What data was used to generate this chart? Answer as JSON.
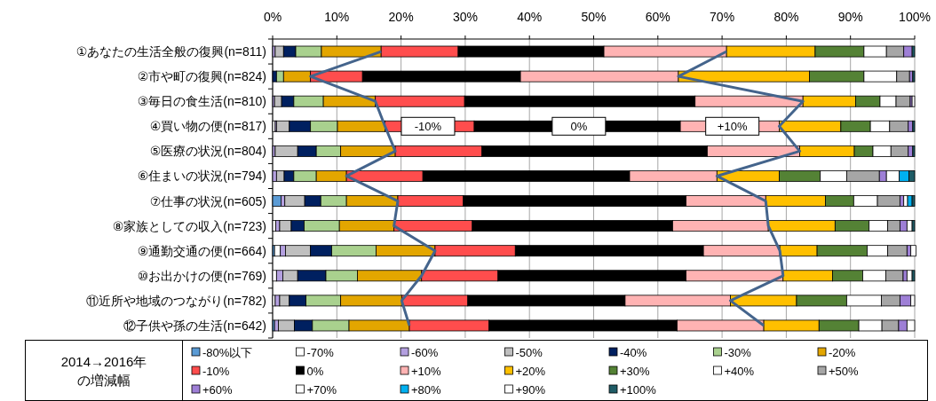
{
  "chart_data": {
    "type": "bar",
    "orientation": "horizontal",
    "stacked": true,
    "categories": [
      "①あなたの生活全般の復興(n=811)",
      "②市や町の復興(n=824)",
      "③毎日の食生活(n=810)",
      "④買い物の便(n=817)",
      "⑤医療の状況(n=804)",
      "⑥住まいの状況(n=794)",
      "⑦仕事の状況(n=605)",
      "⑧家族としての収入(n=723)",
      "⑨通勤交通の便(n=664)",
      "⑩お出かけの便(n=769)",
      "⑪近所や地域のつながり(n=782)",
      "⑫子供や孫の生活(n=642)"
    ],
    "xlim": [
      0,
      100
    ],
    "xticks": [
      {
        "value": 0,
        "label": "0%"
      },
      {
        "value": 10,
        "label": "10%"
      },
      {
        "value": 20,
        "label": "20%"
      },
      {
        "value": 30,
        "label": "30%"
      },
      {
        "value": 40,
        "label": "40%"
      },
      {
        "value": 50,
        "label": "50%"
      },
      {
        "value": 60,
        "label": "60%"
      },
      {
        "value": 70,
        "label": "70%"
      },
      {
        "value": 80,
        "label": "80%"
      },
      {
        "value": 90,
        "label": "90%"
      },
      {
        "value": 100,
        "label": "100%"
      }
    ],
    "grid": "x",
    "legend": "bottom",
    "legend_title": "2014→2016年の増減幅",
    "series": [
      {
        "name": "-80%以下",
        "color": "#5b9bd5",
        "values": [
          0,
          0,
          0,
          0,
          0,
          0,
          1.3,
          0,
          0.3,
          0,
          0,
          0.3
        ]
      },
      {
        "name": "-70%",
        "color": "#ffffff",
        "values": [
          0,
          0,
          0,
          0.4,
          0,
          0,
          0,
          0.5,
          0.9,
          0.6,
          0.4,
          0
        ]
      },
      {
        "name": "-60%",
        "color": "#b4a0e0",
        "values": [
          0.4,
          0,
          0.3,
          0.2,
          0.4,
          0.6,
          0.6,
          0.6,
          0.8,
          1.0,
          0.7,
          0.6
        ]
      },
      {
        "name": "-50%",
        "color": "#bfbfbf",
        "values": [
          1.3,
          0,
          1.1,
          2.0,
          3.5,
          1.2,
          3.1,
          1.8,
          3.9,
          2.3,
          1.5,
          2.5
        ]
      },
      {
        "name": "-40%",
        "color": "#002060",
        "values": [
          1.9,
          0.6,
          1.9,
          3.3,
          2.9,
          1.5,
          2.5,
          2.0,
          3.3,
          4.4,
          2.6,
          2.8
        ]
      },
      {
        "name": "-30%",
        "color": "#a9d18e",
        "values": [
          4.0,
          1.1,
          4.6,
          4.2,
          3.8,
          3.5,
          4.0,
          5.5,
          6.9,
          4.9,
          5.4,
          5.7
        ]
      },
      {
        "name": "-20%",
        "color": "#e3a600",
        "values": [
          9.3,
          4.2,
          8.1,
          7.4,
          8.5,
          4.7,
          8.0,
          8.5,
          9.2,
          10.0,
          9.5,
          9.4
        ]
      },
      {
        "name": "-10%",
        "color": "#ff4d4d",
        "values": [
          12.0,
          8.1,
          13.9,
          13.9,
          13.5,
          11.9,
          10.2,
          12.2,
          12.5,
          11.9,
          10.3,
          12.4
        ]
      },
      {
        "name": "0%",
        "color": "#000000",
        "values": [
          22.7,
          24.6,
          35.9,
          32.1,
          35.1,
          32.2,
          34.7,
          31.2,
          29.3,
          29.3,
          24.5,
          29.3
        ]
      },
      {
        "name": "+10%",
        "color": "#ffb3b3",
        "values": [
          19.1,
          24.6,
          16.8,
          15.4,
          14.4,
          13.6,
          12.4,
          14.9,
          11.9,
          15.1,
          16.4,
          13.5
        ]
      },
      {
        "name": "+20%",
        "color": "#ffc000",
        "values": [
          13.8,
          20.4,
          8.2,
          9.6,
          8.5,
          9.7,
          9.3,
          10.4,
          5.8,
          7.7,
          10.3,
          8.6
        ]
      },
      {
        "name": "+30%",
        "color": "#548235",
        "values": [
          7.6,
          8.5,
          3.8,
          4.6,
          2.9,
          6.4,
          4.4,
          5.3,
          7.8,
          4.7,
          7.8,
          6.2
        ]
      },
      {
        "name": "+40%",
        "color": "#ffffff",
        "values": [
          3.5,
          5.1,
          2.5,
          3.0,
          2.8,
          4.1,
          3.7,
          2.9,
          3.2,
          3.6,
          5.4,
          3.6
        ]
      },
      {
        "name": "+50%",
        "color": "#a6a6a6",
        "values": [
          2.7,
          2.0,
          2.2,
          2.9,
          2.7,
          5.1,
          3.5,
          1.9,
          3.0,
          2.7,
          2.9,
          2.6
        ]
      },
      {
        "name": "+60%",
        "color": "#9e7fd6",
        "values": [
          1.3,
          0.5,
          0.3,
          0.7,
          0.7,
          1.1,
          0.6,
          1.1,
          0.6,
          0.6,
          1.7,
          1.3
        ]
      },
      {
        "name": "+70%",
        "color": "#ffffff",
        "values": [
          0,
          0,
          0.4,
          0,
          0,
          2.0,
          0.6,
          0.8,
          0.8,
          0.8,
          0.6,
          1.2
        ]
      },
      {
        "name": "+80%",
        "color": "#00b0f0",
        "values": [
          0,
          0,
          0,
          0,
          0,
          1.5,
          0.7,
          0,
          0,
          0,
          0,
          0
        ]
      },
      {
        "name": "+90%",
        "color": "#ffffff",
        "values": [
          0,
          0,
          0,
          0,
          0,
          0,
          0,
          0,
          0,
          0,
          0,
          0
        ]
      },
      {
        "name": "+100%",
        "color": "#1f5c66",
        "values": [
          0.4,
          0.3,
          0,
          0.3,
          0.3,
          0.9,
          0.4,
          0.4,
          0,
          0.4,
          0,
          0
        ]
      },
      {
        "type": "line",
        "color": "#44648c",
        "values": [
          16.9,
          5.9,
          16.0,
          17.5,
          19.1,
          11.5,
          19.5,
          18.9,
          25.3,
          23.2,
          20.1,
          21.3
        ]
      },
      {
        "type": "line",
        "color": "#44648c",
        "values": [
          70.7,
          63.2,
          82.6,
          78.9,
          82.1,
          69.2,
          76.8,
          77.2,
          79.0,
          79.5,
          71.3,
          76.5
        ]
      }
    ],
    "annotations": [
      "-10%",
      "0%",
      "+10%"
    ]
  }
}
